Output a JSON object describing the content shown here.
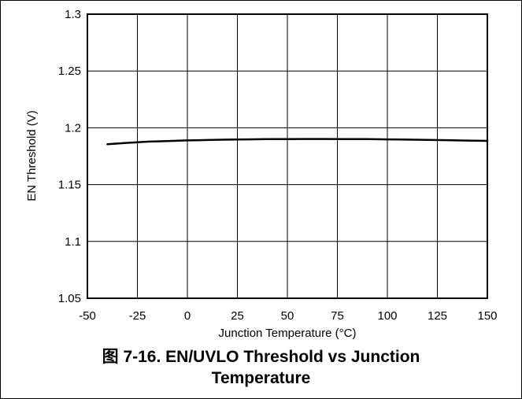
{
  "chart_data": {
    "type": "line",
    "xlabel": "Junction Temperature (°C)",
    "ylabel": "EN Threshold (V)",
    "xlim": [
      -50,
      150
    ],
    "ylim": [
      1.05,
      1.3
    ],
    "xticks": [
      "-50",
      "-25",
      "0",
      "25",
      "50",
      "75",
      "100",
      "125",
      "150"
    ],
    "yticks": [
      "1.05",
      "1.1",
      "1.15",
      "1.2",
      "1.25",
      "1.3"
    ],
    "grid": true,
    "series": [
      {
        "x": [
          -40,
          -30,
          -20,
          -10,
          0,
          10,
          20,
          30,
          40,
          50,
          60,
          70,
          80,
          90,
          100,
          110,
          120,
          130,
          140,
          150
        ],
        "values": [
          1.1855,
          1.1868,
          1.1878,
          1.1884,
          1.1889,
          1.1893,
          1.1896,
          1.1898,
          1.19,
          1.1901,
          1.1902,
          1.1902,
          1.1901,
          1.19,
          1.1898,
          1.1896,
          1.1894,
          1.1891,
          1.1888,
          1.1885
        ]
      }
    ]
  },
  "caption": {
    "line1": "图 7-16. EN/UVLO Threshold vs Junction",
    "line2": "Temperature"
  }
}
